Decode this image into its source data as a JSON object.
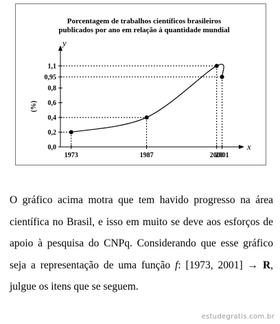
{
  "chart_data": {
    "type": "line",
    "title_lines": [
      "Porcentagem de trabalhos científicos brasileiros",
      "publicados por ano em relação à quantidade mundial"
    ],
    "x_label": "x",
    "y_label": "y",
    "unit_label": "(%)",
    "x": [
      1973,
      1987,
      2000,
      2001
    ],
    "values": [
      0.2,
      0.4,
      1.1,
      0.95
    ],
    "color": "#000000",
    "xlim": [
      1971,
      2005
    ],
    "ylim": [
      0,
      1.3
    ],
    "xticks": [
      1973,
      1987,
      2000,
      2001
    ],
    "yticks": [
      {
        "value": 0,
        "label": "0,0"
      },
      {
        "value": 0.2,
        "label": "0,2"
      },
      {
        "value": 0.4,
        "label": "0,4"
      },
      {
        "value": 0.6,
        "label": "0,6"
      },
      {
        "value": 0.8,
        "label": "0,8"
      },
      {
        "value": 0.95,
        "label": "0,95"
      },
      {
        "value": 1.1,
        "label": "1,1"
      }
    ]
  },
  "text": {
    "parts": [
      "O gráfico acima motra que tem havido progresso na área científica no Brasil, e isso em muito se deve aos esforços de apoio à pesquisa do CNPq. Considerando que esse gráfico seja a representação de uma função ",
      "f",
      ": [1973, 2001] ",
      "→",
      " ",
      "R",
      ", julgue os itens que se seguem."
    ]
  },
  "watermark": "estudegratis.com.br"
}
